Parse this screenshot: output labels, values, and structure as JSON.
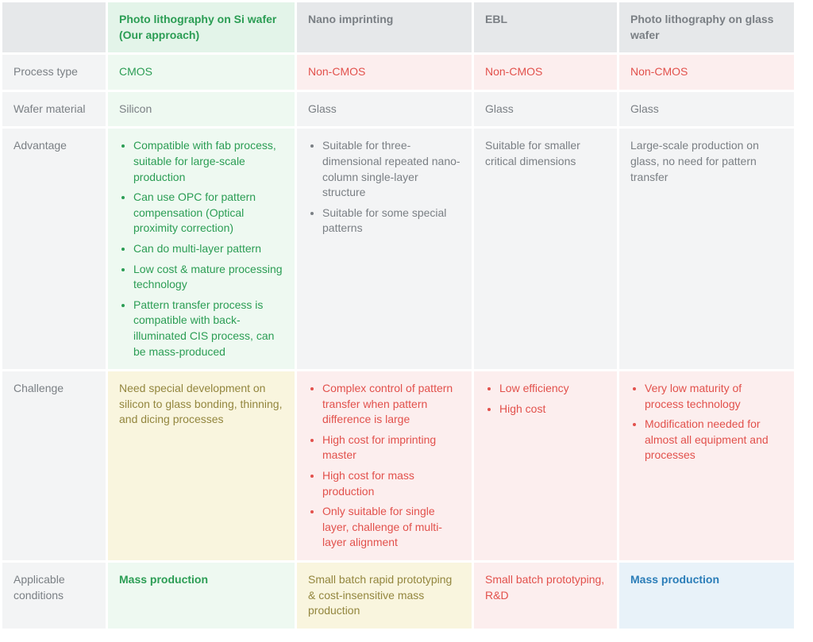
{
  "colors": {
    "header_bg": "#e6e8ea",
    "header_our_bg": "#e3f4e9",
    "default_bg": "#f3f4f5",
    "green_bg": "#eef9f1",
    "red_bg": "#fceeee",
    "yellow_bg": "#f9f5de",
    "blue_bg": "#e8f2f9",
    "green_text": "#2b9d54",
    "red_text": "#e2514c",
    "olive_text": "#93863e",
    "blue_text": "#2a7db8",
    "default_text": "#7a7f84"
  },
  "columns": {
    "c1": "Photo lithography on Si wafer (Our approach)",
    "c2": "Nano imprinting",
    "c3": "EBL",
    "c4": "Photo lithography on glass wafer"
  },
  "rows": {
    "process_type": {
      "label": "Process type",
      "c1": "CMOS",
      "c2": "Non-CMOS",
      "c3": "Non-CMOS",
      "c4": "Non-CMOS"
    },
    "wafer_material": {
      "label": "Wafer material",
      "c1": "Silicon",
      "c2": "Glass",
      "c3": "Glass",
      "c4": "Glass"
    },
    "advantage": {
      "label": "Advantage",
      "c1": [
        "Compatible with fab process, suitable for large-scale production",
        "Can use OPC for pattern compensation (Optical proximity correction)",
        "Can do multi-layer pattern",
        "Low cost & mature processing technology",
        "Pattern transfer process is compatible with back-illuminated CIS process, can be mass-produced"
      ],
      "c2": [
        "Suitable for three-dimensional repeated nano-column single-layer structure",
        "Suitable for some special patterns"
      ],
      "c3": "Suitable for smaller critical dimensions",
      "c4": "Large-scale production on glass, no need for pattern transfer"
    },
    "challenge": {
      "label": "Challenge",
      "c1": "Need special development on silicon to glass bonding, thinning, and dicing processes",
      "c2": [
        "Complex control of pattern transfer when pattern difference is large",
        "High cost for imprinting master",
        "High cost for mass production",
        "Only suitable for single layer, challenge of multi-layer alignment"
      ],
      "c3": [
        "Low efficiency",
        "High cost"
      ],
      "c4": [
        "Very low maturity of process technology",
        "Modification needed for almost all equipment and processes"
      ]
    },
    "applicable": {
      "label": "Applicable conditions",
      "c1": "Mass production",
      "c2": "Small batch rapid prototyping & cost-insensitive mass production",
      "c3": "Small batch prototyping, R&D",
      "c4": "Mass production"
    }
  }
}
